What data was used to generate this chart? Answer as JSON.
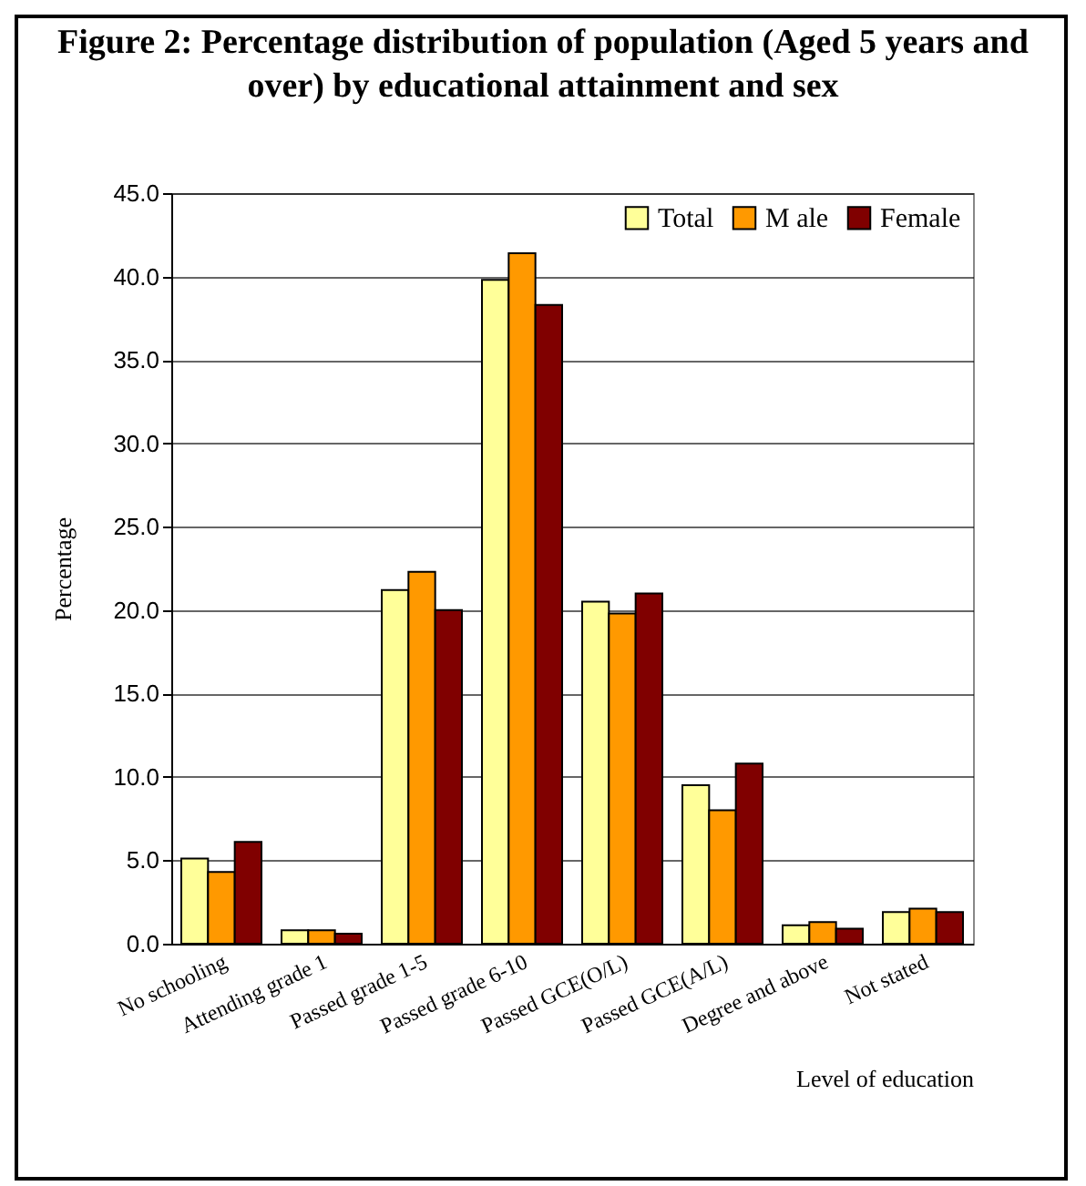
{
  "chart_data": {
    "type": "bar",
    "title": "Figure 2: Percentage distribution of population (Aged 5 years and over) by educational attainment and sex",
    "xlabel": "Level of education",
    "ylabel": "Percentage",
    "categories": [
      "No schooling",
      "Attending grade 1",
      "Passed grade 1-5",
      "Passed grade 6-10",
      "Passed GCE(O/L)",
      "Passed GCE(A/L)",
      "Degree and above",
      "Not stated"
    ],
    "series": [
      {
        "name": "Total",
        "color": "#ffff99",
        "values": [
          5.1,
          0.8,
          21.2,
          39.8,
          20.5,
          9.5,
          1.1,
          1.9
        ]
      },
      {
        "name": "M ale",
        "color": "#ff9900",
        "values": [
          4.3,
          0.8,
          22.3,
          41.4,
          19.8,
          8.0,
          1.3,
          2.1
        ]
      },
      {
        "name": "Female",
        "color": "#800000",
        "values": [
          6.1,
          0.6,
          20.0,
          38.3,
          21.0,
          10.8,
          0.9,
          1.9
        ]
      }
    ],
    "ylim": [
      0,
      45
    ],
    "yticks": [
      {
        "value": 0,
        "label": "0.0"
      },
      {
        "value": 5,
        "label": "5.0"
      },
      {
        "value": 10,
        "label": "10.0"
      },
      {
        "value": 15,
        "label": "15.0"
      },
      {
        "value": 20,
        "label": "20.0"
      },
      {
        "value": 25,
        "label": "25.0"
      },
      {
        "value": 30,
        "label": "30.0"
      },
      {
        "value": 35,
        "label": "35.0"
      },
      {
        "value": 40,
        "label": "40.0"
      },
      {
        "value": 45,
        "label": "45.0"
      }
    ],
    "grid": "y",
    "legend": "top right"
  }
}
